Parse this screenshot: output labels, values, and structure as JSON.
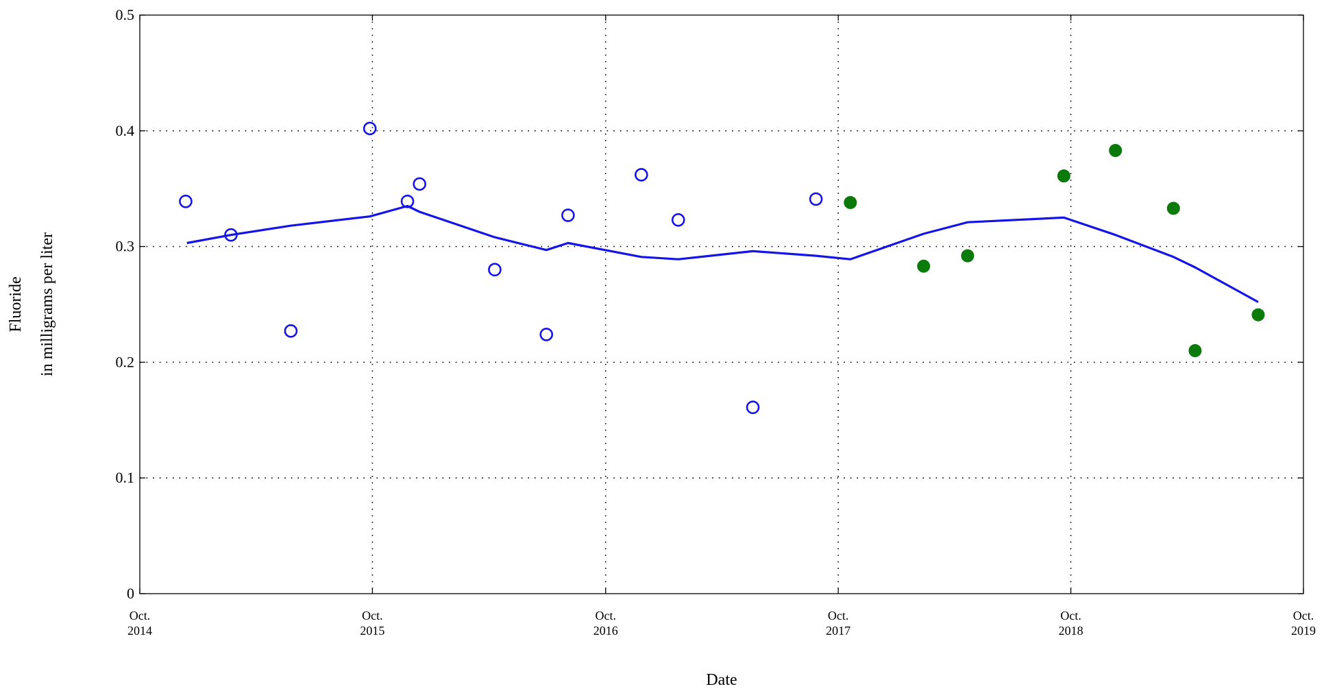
{
  "chart_data": {
    "type": "scatter",
    "xlabel": "Date",
    "ylabel_lines": [
      "Fluoride",
      "in milligrams per liter"
    ],
    "grid": true,
    "xlim": [
      "2014-10-01",
      "2019-10-01"
    ],
    "ylim": [
      0,
      0.5
    ],
    "x_ticks": [
      {
        "date": "2014-10-01",
        "line1": "Oct.",
        "line2": "2014"
      },
      {
        "date": "2015-10-01",
        "line1": "Oct.",
        "line2": "2015"
      },
      {
        "date": "2016-10-01",
        "line1": "Oct.",
        "line2": "2016"
      },
      {
        "date": "2017-10-01",
        "line1": "Oct.",
        "line2": "2017"
      },
      {
        "date": "2018-10-01",
        "line1": "Oct.",
        "line2": "2018"
      },
      {
        "date": "2019-10-01",
        "line1": "Oct.",
        "line2": "2019"
      }
    ],
    "y_ticks": [
      {
        "value": 0,
        "label": "0"
      },
      {
        "value": 0.1,
        "label": "0.1"
      },
      {
        "value": 0.2,
        "label": "0.2"
      },
      {
        "value": 0.3,
        "label": "0.3"
      },
      {
        "value": 0.4,
        "label": "0.4"
      },
      {
        "value": 0.5,
        "label": "0.5"
      }
    ],
    "series": [
      {
        "marker": "open-circle",
        "color": "#1414e6",
        "points": [
          {
            "x": "2014-12-12",
            "y": 0.339
          },
          {
            "x": "2015-02-21",
            "y": 0.31
          },
          {
            "x": "2015-05-26",
            "y": 0.227
          },
          {
            "x": "2015-09-27",
            "y": 0.402
          },
          {
            "x": "2015-11-25",
            "y": 0.339
          },
          {
            "x": "2015-12-14",
            "y": 0.354
          },
          {
            "x": "2016-04-10",
            "y": 0.28
          },
          {
            "x": "2016-06-30",
            "y": 0.224
          },
          {
            "x": "2016-08-03",
            "y": 0.327
          },
          {
            "x": "2016-11-26",
            "y": 0.362
          },
          {
            "x": "2017-01-23",
            "y": 0.323
          },
          {
            "x": "2017-05-20",
            "y": 0.161
          },
          {
            "x": "2017-08-27",
            "y": 0.341
          }
        ]
      },
      {
        "marker": "filled-circle",
        "color": "#0a7a0a",
        "points": [
          {
            "x": "2017-10-20",
            "y": 0.338
          },
          {
            "x": "2018-02-12",
            "y": 0.283
          },
          {
            "x": "2018-04-22",
            "y": 0.292
          },
          {
            "x": "2018-09-20",
            "y": 0.361
          },
          {
            "x": "2018-12-10",
            "y": 0.383
          },
          {
            "x": "2019-03-11",
            "y": 0.333
          },
          {
            "x": "2019-04-14",
            "y": 0.21
          },
          {
            "x": "2019-07-22",
            "y": 0.241
          }
        ]
      },
      {
        "type": "line",
        "color": "#1414e6",
        "points": [
          {
            "x": "2014-12-14",
            "y": 0.303
          },
          {
            "x": "2015-02-21",
            "y": 0.31
          },
          {
            "x": "2015-05-26",
            "y": 0.318
          },
          {
            "x": "2015-09-27",
            "y": 0.326
          },
          {
            "x": "2015-11-25",
            "y": 0.335
          },
          {
            "x": "2015-12-14",
            "y": 0.33
          },
          {
            "x": "2016-04-10",
            "y": 0.308
          },
          {
            "x": "2016-06-30",
            "y": 0.297
          },
          {
            "x": "2016-08-03",
            "y": 0.303
          },
          {
            "x": "2016-11-26",
            "y": 0.291
          },
          {
            "x": "2017-01-23",
            "y": 0.289
          },
          {
            "x": "2017-05-20",
            "y": 0.296
          },
          {
            "x": "2017-08-27",
            "y": 0.292
          },
          {
            "x": "2017-10-20",
            "y": 0.289
          },
          {
            "x": "2018-02-12",
            "y": 0.311
          },
          {
            "x": "2018-04-22",
            "y": 0.321
          },
          {
            "x": "2018-09-20",
            "y": 0.325
          },
          {
            "x": "2018-12-10",
            "y": 0.31
          },
          {
            "x": "2019-03-11",
            "y": 0.291
          },
          {
            "x": "2019-04-14",
            "y": 0.282
          },
          {
            "x": "2019-07-22",
            "y": 0.252
          }
        ]
      }
    ]
  }
}
